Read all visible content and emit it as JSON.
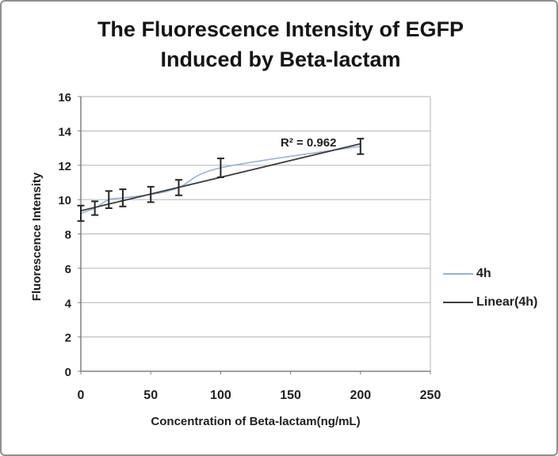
{
  "window": {
    "background": "#ffffff",
    "border_color": "#8f8f8f"
  },
  "chart_data": {
    "type": "line",
    "title_line1": "The Fluorescence Intensity of EGFP",
    "title_line2": "Induced by Beta-lactam",
    "xlabel": "Concentration of Beta-lactam(ng/mL)",
    "ylabel": "Fluorescence Intensity",
    "xlim": [
      0,
      250
    ],
    "ylim": [
      0,
      16
    ],
    "x_ticks": [
      0,
      50,
      100,
      150,
      200,
      250
    ],
    "y_ticks": [
      0,
      2,
      4,
      6,
      8,
      10,
      12,
      14,
      16
    ],
    "grid": true,
    "annotation": "R² = 0.962",
    "colors": {
      "gridline": "#b3b3b3",
      "axis": "#808080",
      "error_bar": "#262626",
      "text": "#1f1f1f"
    },
    "series": [
      {
        "name": "4h",
        "style": "smooth_line",
        "color": "#95b3d7",
        "x": [
          0,
          10,
          20,
          30,
          50,
          70,
          100,
          200
        ],
        "values": [
          9.2,
          9.5,
          10.0,
          10.1,
          10.3,
          10.7,
          11.85,
          13.1
        ],
        "error": [
          0.45,
          0.4,
          0.5,
          0.5,
          0.45,
          0.45,
          0.55,
          0.45
        ]
      },
      {
        "name": "Linear(4h)",
        "style": "trendline",
        "color": "#3c3c3c",
        "x": [
          0,
          200
        ],
        "values": [
          9.35,
          13.25
        ]
      }
    ],
    "legend": {
      "position": "right"
    }
  }
}
